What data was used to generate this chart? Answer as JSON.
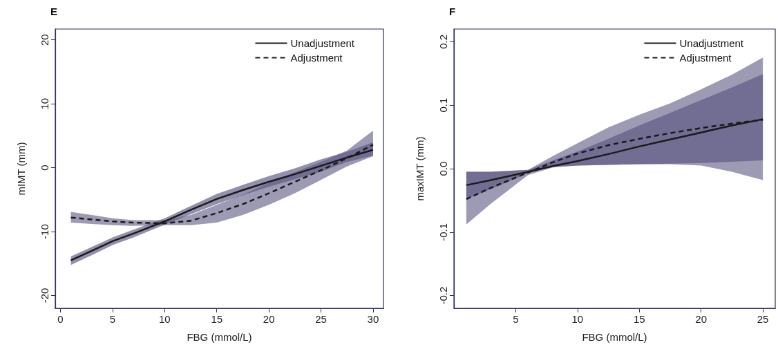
{
  "chart_data": [
    {
      "type": "line",
      "title": "E",
      "xlabel": "FBG (mmol/L)",
      "ylabel": "mIMT (mm)",
      "xlim": [
        -0.5,
        31
      ],
      "xticks": [
        0,
        5,
        10,
        15,
        20,
        25,
        30
      ],
      "ylim": [
        -22,
        21.7
      ],
      "yticks": [
        -20,
        -10,
        0,
        10,
        20
      ],
      "grid": false,
      "legend": "top right",
      "marker": "none",
      "x": [
        1,
        3,
        5,
        7,
        10,
        12.5,
        15,
        17.5,
        20,
        22.5,
        25,
        27.5,
        30
      ],
      "series": [
        {
          "name": "Unadjustment",
          "color": "#1a1a1a",
          "line_style": "solid",
          "values": [
            -14.5,
            -13.0,
            -11.5,
            -10.3,
            -8.4,
            -6.6,
            -4.9,
            -3.5,
            -2.2,
            -1.0,
            0.3,
            1.6,
            2.8
          ],
          "lower": [
            -15.2,
            -13.7,
            -12.1,
            -10.9,
            -8.9,
            -7.3,
            -5.7,
            -4.3,
            -3.0,
            -1.8,
            -0.6,
            0.9,
            1.9
          ],
          "upper": [
            -13.9,
            -12.4,
            -10.9,
            -9.7,
            -7.9,
            -6.0,
            -4.1,
            -2.7,
            -1.3,
            -0.1,
            1.3,
            2.5,
            4.0
          ]
        },
        {
          "name": "Adjustment",
          "color": "#1a1a1a",
          "line_style": "dashed",
          "values": [
            -7.8,
            -8.1,
            -8.4,
            -8.6,
            -8.7,
            -8.3,
            -7.1,
            -5.7,
            -4.0,
            -2.2,
            -0.4,
            1.5,
            3.6
          ],
          "lower": [
            -8.6,
            -8.8,
            -9.0,
            -9.1,
            -9.0,
            -9.0,
            -8.6,
            -7.4,
            -5.8,
            -4.0,
            -1.9,
            0.2,
            1.8
          ],
          "upper": [
            -6.9,
            -7.4,
            -7.9,
            -8.2,
            -8.2,
            -7.4,
            -5.8,
            -4.2,
            -2.4,
            -0.7,
            0.9,
            2.7,
            5.8
          ]
        }
      ]
    },
    {
      "type": "line",
      "title": "F",
      "xlabel": "FBG (mmol/L)",
      "ylabel": "maxIMT (mm)",
      "xlim": [
        0,
        26
      ],
      "xticks": [
        5,
        10,
        15,
        20,
        25
      ],
      "ylim": [
        -0.22,
        0.22
      ],
      "yticks": [
        -0.2,
        -0.1,
        {
          "value": 0,
          "label": "0.0"
        },
        0.1,
        0.2
      ],
      "grid": false,
      "legend": "top right",
      "marker": "none",
      "x": [
        1,
        3,
        6,
        8,
        10,
        12.5,
        15,
        17.5,
        20,
        22.5,
        25
      ],
      "series": [
        {
          "name": "Unadjustment",
          "color": "#1a1a1a",
          "line_style": "solid",
          "values": [
            -0.026,
            -0.018,
            -0.005,
            0.004,
            0.012,
            0.023,
            0.035,
            0.046,
            0.057,
            0.068,
            0.078
          ],
          "lower": [
            -0.048,
            -0.032,
            -0.007,
            0.003,
            0.005,
            0.006,
            0.007,
            0.008,
            0.009,
            0.011,
            0.013
          ],
          "upper": [
            -0.005,
            -0.005,
            -0.002,
            0.013,
            0.027,
            0.047,
            0.068,
            0.088,
            0.108,
            0.128,
            0.149
          ]
        },
        {
          "name": "Adjustment",
          "color": "#1a1a1a",
          "line_style": "dashed",
          "values": [
            -0.048,
            -0.03,
            -0.006,
            0.01,
            0.024,
            0.037,
            0.047,
            0.056,
            0.064,
            0.071,
            0.077
          ],
          "lower": [
            -0.088,
            -0.055,
            -0.01,
            0.002,
            0.005,
            0.006,
            0.007,
            0.007,
            0.005,
            -0.005,
            -0.018
          ],
          "upper": [
            -0.005,
            -0.005,
            -0.002,
            0.02,
            0.04,
            0.065,
            0.085,
            0.103,
            0.125,
            0.148,
            0.175
          ]
        }
      ]
    }
  ]
}
